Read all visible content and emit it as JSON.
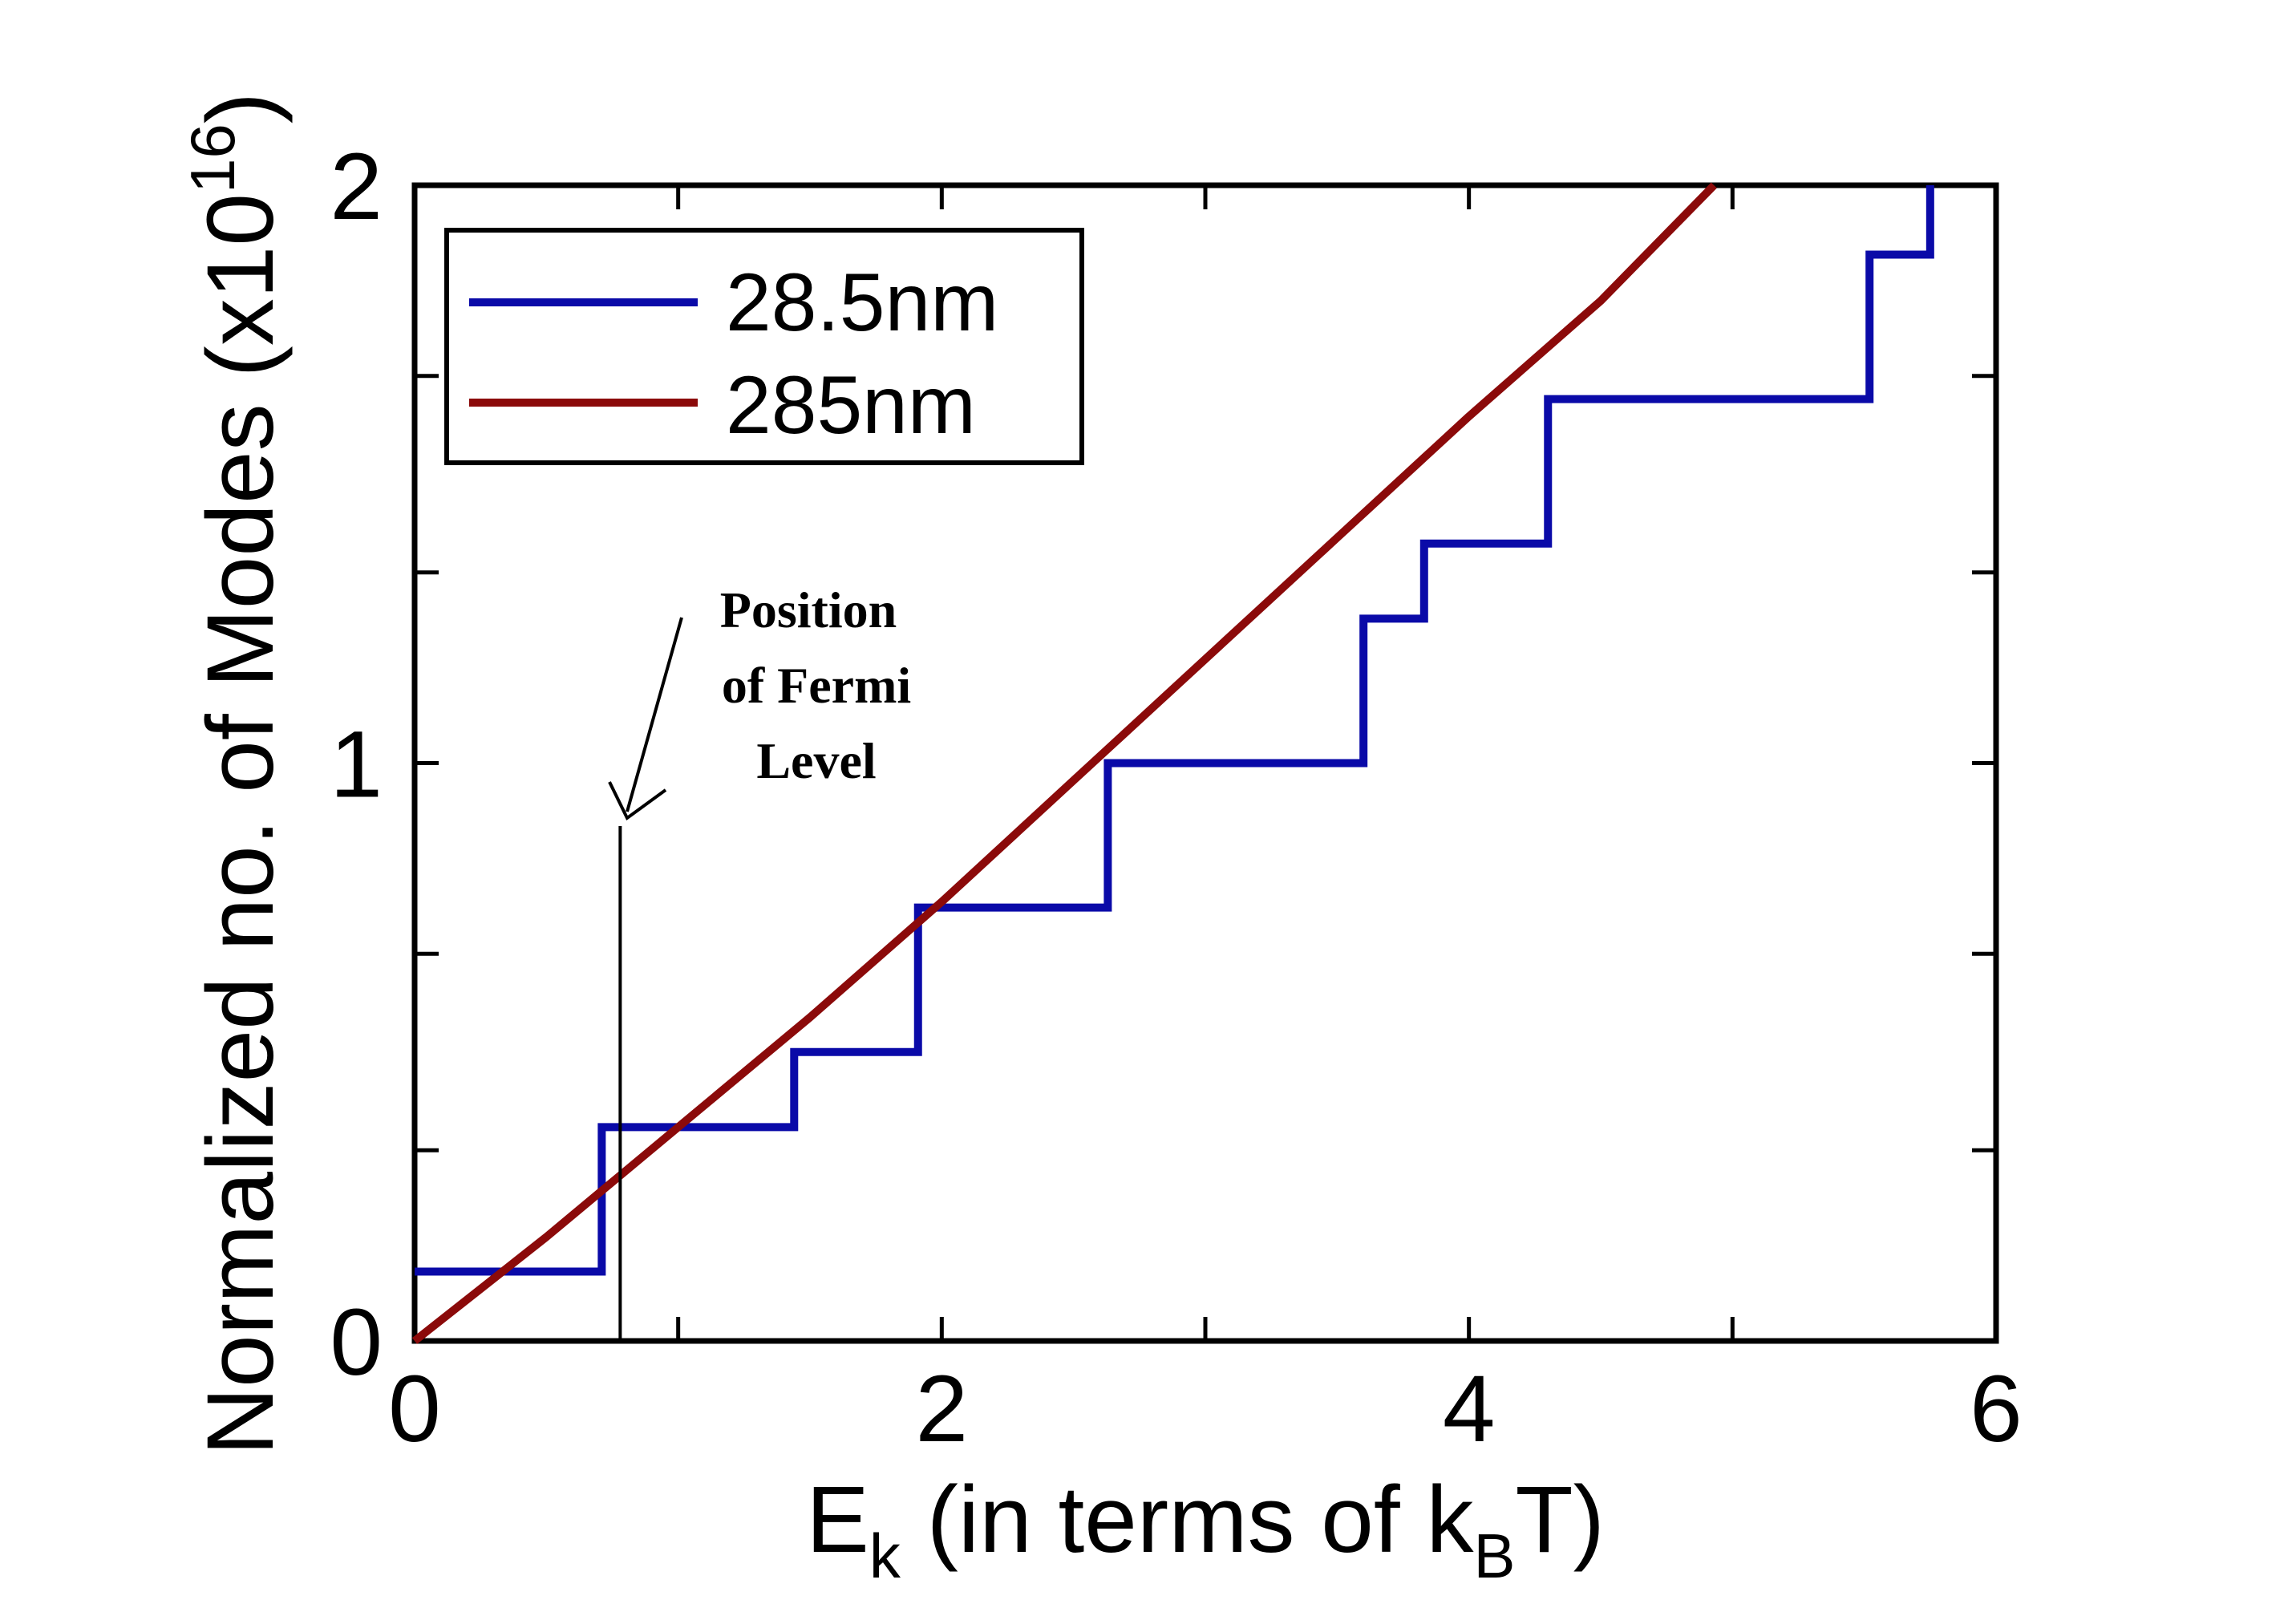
{
  "chart_data": {
    "type": "line",
    "title": "",
    "xlabel": {
      "main": "E",
      "sub": "k",
      "rest": " (in terms of k",
      "sub2": "B",
      "tail": "T)"
    },
    "ylabel": {
      "main": "Normalized no. of Modes (x10",
      "sup": "16",
      "tail": ")"
    },
    "xlim": [
      0,
      6
    ],
    "ylim": [
      0,
      2
    ],
    "x_ticks": [
      0,
      2,
      4,
      6
    ],
    "y_ticks": [
      0,
      1,
      2
    ],
    "x_tick_labels": [
      "0",
      "2",
      "4",
      "6"
    ],
    "y_tick_labels": [
      "0",
      "1",
      "2"
    ],
    "x_minor_ticks": [
      1,
      3,
      5
    ],
    "y_minor_ticks": [
      0.33,
      0.67,
      1.33,
      1.67
    ],
    "grid": false,
    "legend_position": "top-left",
    "series": [
      {
        "name": "28.5nm",
        "color": "#0a0aa8",
        "style": "step",
        "x": [
          0,
          0.71,
          0.71,
          1.44,
          1.44,
          1.91,
          1.91,
          2.63,
          2.63,
          3.6,
          3.6,
          3.83,
          3.83,
          4.3,
          4.3,
          5.52,
          5.52,
          5.75,
          5.75
        ],
        "y": [
          0.12,
          0.12,
          0.37,
          0.37,
          0.5,
          0.5,
          0.75,
          0.75,
          1.0,
          1.0,
          1.25,
          1.25,
          1.38,
          1.38,
          1.63,
          1.63,
          1.88,
          1.88,
          2.0
        ]
      },
      {
        "name": "285nm",
        "color": "#8b0a0a",
        "style": "line",
        "x": [
          0,
          0.5,
          1.0,
          1.5,
          2.0,
          2.5,
          3.0,
          3.5,
          4.0,
          4.5,
          4.93
        ],
        "y": [
          0,
          0.18,
          0.37,
          0.56,
          0.76,
          0.97,
          1.18,
          1.39,
          1.6,
          1.8,
          2.0
        ]
      }
    ],
    "annotations": [
      {
        "label_lines": [
          "Position",
          "of Fermi",
          "Level"
        ],
        "x_marker": 0.78
      }
    ]
  }
}
